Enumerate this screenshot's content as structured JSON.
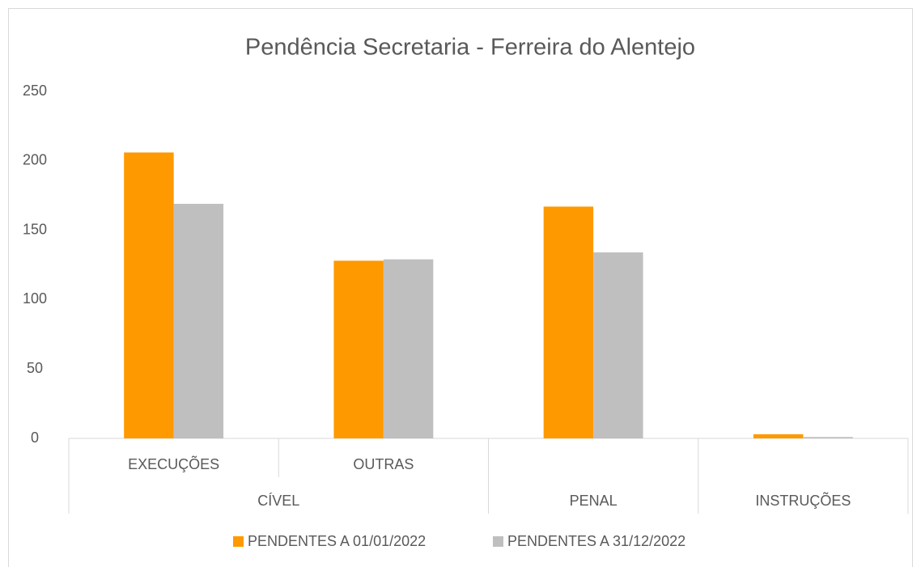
{
  "chart_data": {
    "type": "bar",
    "title": "Pendência Secretaria - Ferreira do Alentejo",
    "groups": [
      {
        "name": "CÍVEL",
        "categories": [
          "EXECUÇÕES",
          "OUTRAS"
        ]
      },
      {
        "name": "PENAL",
        "categories": [
          null
        ]
      },
      {
        "name": "INSTRUÇÕES",
        "categories": [
          null
        ]
      }
    ],
    "series": [
      {
        "name": "PENDENTES A 01/01/2022",
        "color": "#ff9900",
        "values": [
          206,
          128,
          167,
          3
        ]
      },
      {
        "name": "PENDENTES A 31/12/2022",
        "color": "#bfbfbf",
        "values": [
          169,
          129,
          134,
          1
        ]
      }
    ],
    "ylim": [
      0,
      250
    ],
    "yticks": [
      0,
      50,
      100,
      150,
      200,
      250
    ],
    "grid": false,
    "legend": "bottom"
  }
}
